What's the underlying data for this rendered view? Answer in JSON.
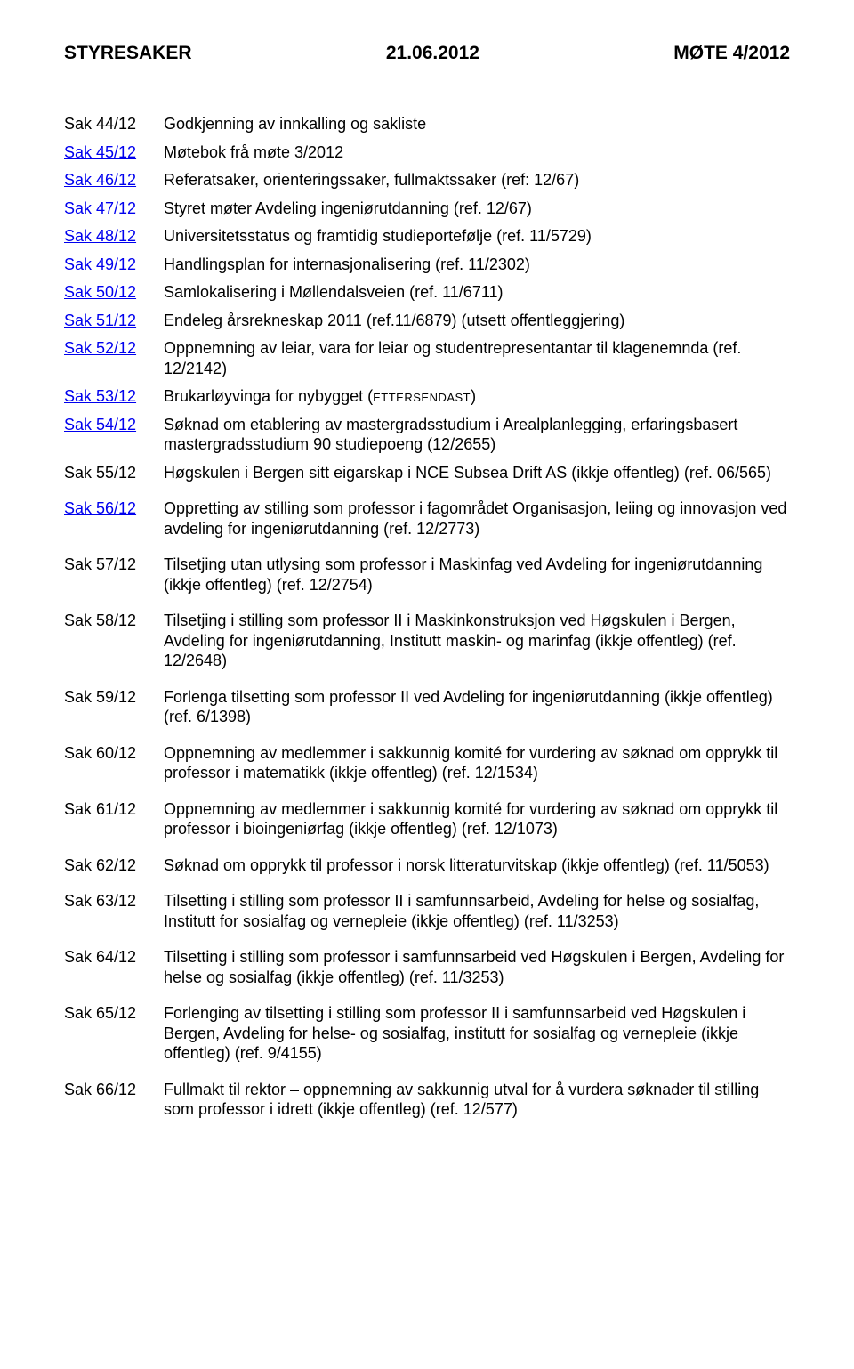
{
  "header": {
    "left": "STYRESAKER",
    "center": "21.06.2012",
    "right": "MØTE 4/2012"
  },
  "items": [
    {
      "id": "Sak 44/12",
      "link": false,
      "desc": "Godkjenning av innkalling og sakliste",
      "spacer": false
    },
    {
      "id": "Sak 45/12",
      "link": true,
      "desc": "Møtebok frå møte 3/2012",
      "spacer": false
    },
    {
      "id": "Sak 46/12",
      "link": true,
      "desc": "Referatsaker, orienteringssaker, fullmaktssaker (ref: 12/67)",
      "spacer": false
    },
    {
      "id": "Sak 47/12",
      "link": true,
      "desc": "Styret møter Avdeling ingeniørutdanning (ref. 12/67)",
      "spacer": false
    },
    {
      "id": "Sak 48/12",
      "link": true,
      "desc": "Universitetsstatus og framtidig studieportefølje (ref. 11/5729)",
      "spacer": false
    },
    {
      "id": "Sak 49/12",
      "link": true,
      "desc": "Handlingsplan for internasjonalisering (ref. 11/2302)",
      "spacer": false
    },
    {
      "id": "Sak 50/12",
      "link": true,
      "desc": "Samlokalisering i Møllendalsveien (ref. 11/6711)",
      "spacer": false
    },
    {
      "id": "Sak 51/12",
      "link": true,
      "desc": "Endeleg årsrekneskap 2011 (ref.11/6879) (utsett offentleggjering)",
      "spacer": false
    },
    {
      "id": "Sak 52/12",
      "link": true,
      "desc": "Oppnemning av leiar, vara for leiar og studentrepresentantar til klagenemnda (ref. 12/2142)",
      "spacer": false
    },
    {
      "id": "Sak 53/12",
      "link": true,
      "desc_prefix": "Brukarløyvinga for nybygget (",
      "desc_sc": "ettersendast",
      "desc_suffix": ")",
      "spacer": false,
      "smallcaps": true
    },
    {
      "id": "Sak 54/12",
      "link": true,
      "desc": "Søknad om etablering av mastergradsstudium i Arealplanlegging, erfaringsbasert mastergradsstudium 90 studiepoeng (12/2655)",
      "spacer": false
    },
    {
      "id": "Sak 55/12",
      "link": false,
      "desc": "Høgskulen i Bergen sitt eigarskap i NCE Subsea Drift AS (ikkje offentleg) (ref. 06/565)",
      "spacer": false
    },
    {
      "id": "Sak 56/12",
      "link": true,
      "desc": "Oppretting av stilling som professor i fagområdet Organisasjon, leiing og innovasjon ved avdeling for ingeniørutdanning (ref. 12/2773)",
      "spacer": true
    },
    {
      "id": "Sak 57/12",
      "link": false,
      "desc": "Tilsetjing utan utlysing som professor i Maskinfag ved Avdeling for ingeniørutdanning (ikkje offentleg) (ref. 12/2754)",
      "spacer": true
    },
    {
      "id": "Sak 58/12",
      "link": false,
      "desc": "Tilsetjing i stilling som professor II i Maskinkonstruksjon ved Høgskulen i Bergen, Avdeling for ingeniørutdanning, Institutt maskin- og marinfag (ikkje offentleg) (ref. 12/2648)",
      "spacer": true
    },
    {
      "id": "Sak 59/12",
      "link": false,
      "desc": "Forlenga tilsetting som professor II ved Avdeling for ingeniørutdanning (ikkje offentleg) (ref. 6/1398)",
      "spacer": true
    },
    {
      "id": "Sak 60/12",
      "link": false,
      "desc": "Oppnemning av medlemmer i sakkunnig komité for vurdering av søknad om opprykk til professor i matematikk (ikkje offentleg) (ref. 12/1534)",
      "spacer": true
    },
    {
      "id": "Sak 61/12",
      "link": false,
      "desc": "Oppnemning av medlemmer i sakkunnig komité for vurdering av søknad om opprykk til professor i bioingeniørfag (ikkje offentleg) (ref. 12/1073)",
      "spacer": true
    },
    {
      "id": "Sak 62/12",
      "link": false,
      "desc": "Søknad om opprykk til professor i norsk litteraturvitskap (ikkje offentleg) (ref. 11/5053)",
      "spacer": true
    },
    {
      "id": "Sak 63/12",
      "link": false,
      "desc": "Tilsetting i stilling som professor II i samfunnsarbeid, Avdeling for helse og sosialfag, Institutt for sosialfag og vernepleie (ikkje offentleg) (ref. 11/3253)",
      "spacer": true
    },
    {
      "id": "Sak 64/12",
      "link": false,
      "desc": "Tilsetting i stilling som professor i samfunnsarbeid ved Høgskulen i Bergen, Avdeling for helse og sosialfag (ikkje offentleg) (ref. 11/3253)",
      "spacer": true
    },
    {
      "id": "Sak 65/12",
      "link": false,
      "desc": "Forlenging av tilsetting i stilling som professor II i samfunnsarbeid ved Høgskulen i Bergen, Avdeling for helse- og sosialfag, institutt for sosialfag og vernepleie (ikkje offentleg) (ref. 9/4155)",
      "spacer": true
    },
    {
      "id": "Sak 66/12",
      "link": false,
      "desc": "Fullmakt til rektor – oppnemning av sakkunnig utval for å vurdera søknader til stilling som professor i idrett (ikkje offentleg) (ref. 12/577)",
      "spacer": true
    }
  ]
}
